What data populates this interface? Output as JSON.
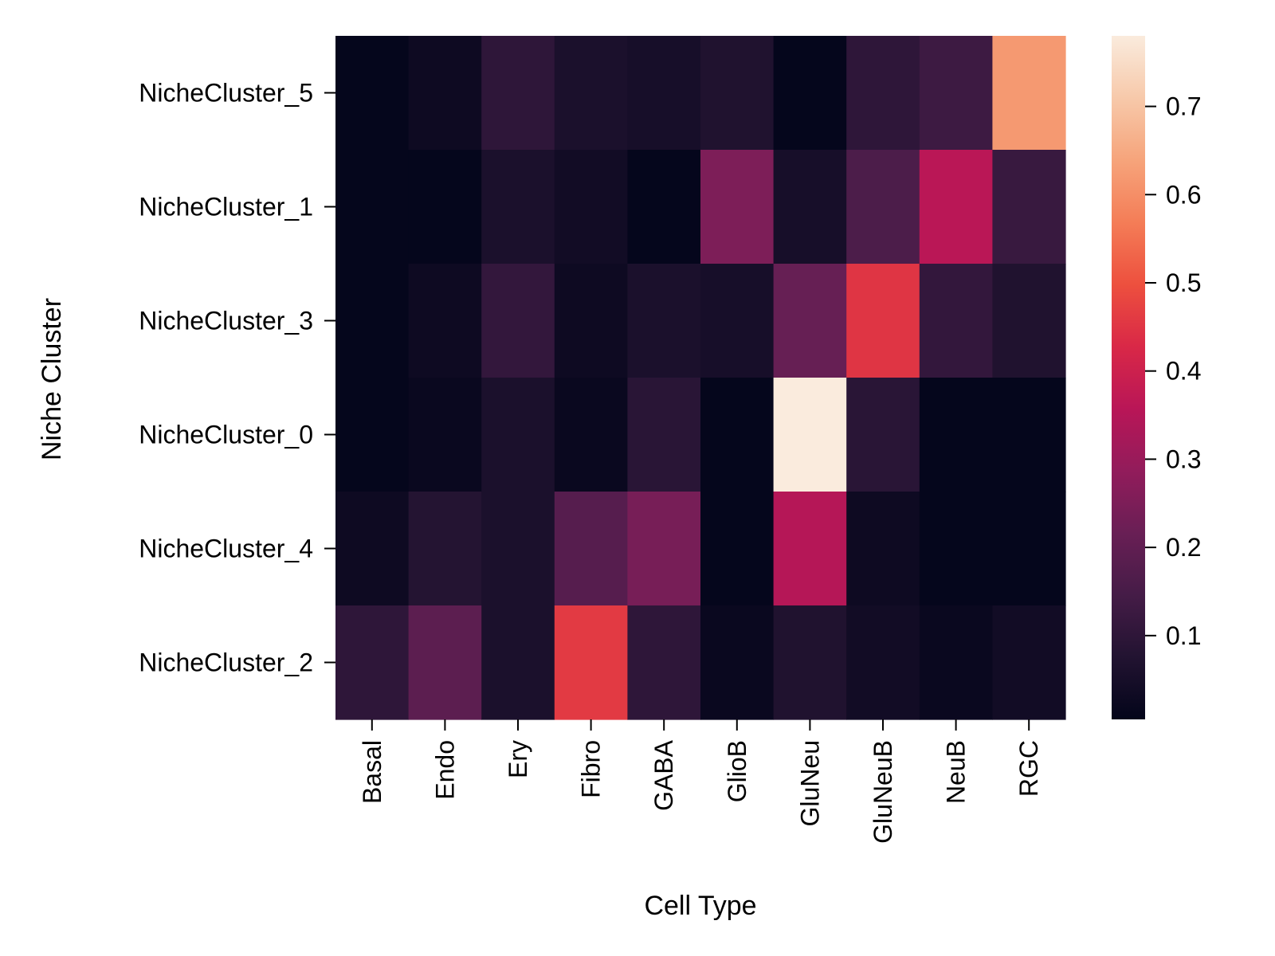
{
  "chart_data": {
    "type": "heatmap",
    "title": "",
    "xlabel": "Cell Type",
    "ylabel": "Niche Cluster",
    "x_categories": [
      "Basal",
      "Endo",
      "Ery",
      "Fibro",
      "GABA",
      "GlioB",
      "GluNeu",
      "GluNeuB",
      "NeuB",
      "RGC"
    ],
    "y_categories": [
      "NicheCluster_5",
      "NicheCluster_1",
      "NicheCluster_3",
      "NicheCluster_0",
      "NicheCluster_4",
      "NicheCluster_2"
    ],
    "values": [
      [
        0.01,
        0.03,
        0.1,
        0.06,
        0.05,
        0.07,
        0.01,
        0.1,
        0.13,
        0.62
      ],
      [
        0.01,
        0.01,
        0.06,
        0.04,
        0.01,
        0.25,
        0.05,
        0.16,
        0.36,
        0.12
      ],
      [
        0.01,
        0.03,
        0.11,
        0.03,
        0.06,
        0.05,
        0.21,
        0.45,
        0.11,
        0.07
      ],
      [
        0.01,
        0.02,
        0.06,
        0.02,
        0.09,
        0.01,
        0.78,
        0.09,
        0.01,
        0.01
      ],
      [
        0.03,
        0.08,
        0.06,
        0.18,
        0.24,
        0.01,
        0.35,
        0.03,
        0.01,
        0.01
      ],
      [
        0.1,
        0.19,
        0.06,
        0.46,
        0.1,
        0.02,
        0.07,
        0.04,
        0.02,
        0.04
      ]
    ],
    "colorbar": {
      "vmin": 0.005,
      "vmax": 0.78,
      "ticks": [
        0.1,
        0.2,
        0.3,
        0.4,
        0.5,
        0.6,
        0.7
      ],
      "tick_labels": [
        "0.1",
        "0.2",
        "0.3",
        "0.4",
        "0.5",
        "0.6",
        "0.7"
      ],
      "colormap": "rocket",
      "stops": [
        "#03051a",
        "#221331",
        "#451c47",
        "#691f55",
        "#921c5b",
        "#b91657",
        "#d92847",
        "#ed503e",
        "#f47d57",
        "#f6a47b",
        "#f7c9aa",
        "#faebdd"
      ]
    }
  }
}
